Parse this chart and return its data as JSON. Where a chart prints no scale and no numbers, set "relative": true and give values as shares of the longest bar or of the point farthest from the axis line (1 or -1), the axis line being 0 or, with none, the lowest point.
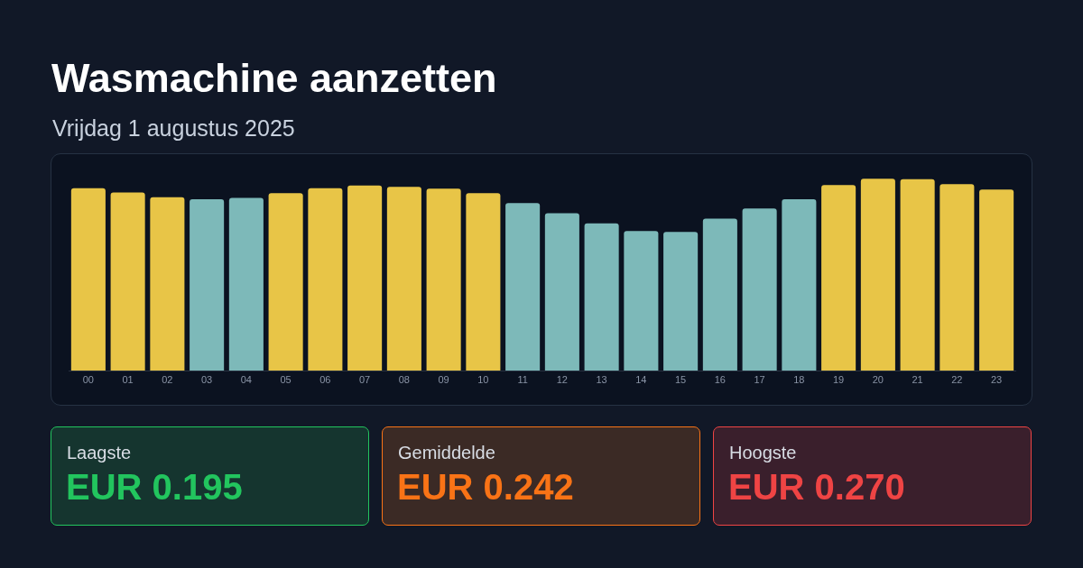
{
  "chart_data": [
    {
      "type": "bar",
      "title": "Wasmachine aanzetten",
      "subtitle": "Vrijdag 1 augustus 2025",
      "categories": [
        "00",
        "01",
        "02",
        "03",
        "04",
        "05",
        "06",
        "07",
        "08",
        "09",
        "10",
        "11",
        "12",
        "13",
        "14",
        "15",
        "16",
        "17",
        "18",
        "19",
        "20",
        "21",
        "22",
        "23"
      ],
      "values": [
        0.95,
        0.928,
        0.904,
        0.893,
        0.9,
        0.924,
        0.95,
        0.964,
        0.957,
        0.948,
        0.925,
        0.873,
        0.82,
        0.767,
        0.727,
        0.722,
        0.792,
        0.845,
        0.893,
        0.967,
        1,
        0.998,
        0.972,
        0.943
      ],
      "colors": [
        "#e8c547",
        "#e8c547",
        "#e8c547",
        "#7db9b9",
        "#7db9b9",
        "#e8c547",
        "#e8c547",
        "#e8c547",
        "#e8c547",
        "#e8c547",
        "#e8c547",
        "#7db9b9",
        "#7db9b9",
        "#7db9b9",
        "#7db9b9",
        "#7db9b9",
        "#7db9b9",
        "#7db9b9",
        "#7db9b9",
        "#e8c547",
        "#e8c547",
        "#e8c547",
        "#e8c547",
        "#e8c547"
      ],
      "relative": true
    },
    {
      "type": "other",
      "title": "Laagste",
      "annotations": [
        "EUR 0.195"
      ]
    },
    {
      "type": "other",
      "title": "Gemiddelde",
      "annotations": [
        "EUR 0.242"
      ]
    },
    {
      "type": "other",
      "title": "Hoogste",
      "annotations": [
        "EUR 0.270"
      ]
    }
  ]
}
